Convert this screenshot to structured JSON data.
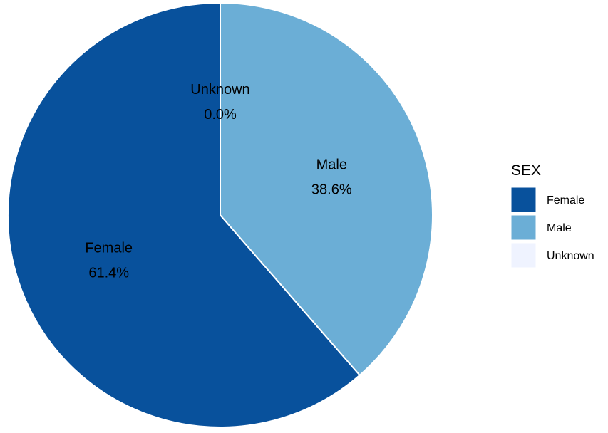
{
  "chart_data": {
    "type": "pie",
    "legend_title": "SEX",
    "legend_position": "right",
    "slices": [
      {
        "label": "Female",
        "value": 61.4,
        "value_label": "61.4%",
        "color": "#08519c"
      },
      {
        "label": "Male",
        "value": 38.6,
        "value_label": "38.6%",
        "color": "#6baed6"
      },
      {
        "label": "Unknown",
        "value": 0.0,
        "value_label": "0.0%",
        "color": "#eff3ff"
      }
    ]
  }
}
